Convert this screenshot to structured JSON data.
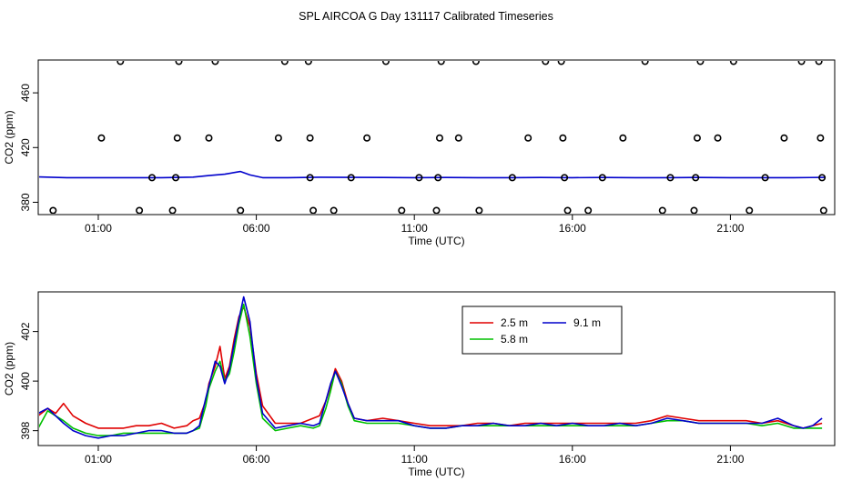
{
  "title": "SPL AIRCOA G  Day 131117  Calibrated Timeseries",
  "chart_data": [
    {
      "type": "scatter",
      "title": "",
      "xlabel": "Time (UTC)",
      "ylabel": "CO2 (ppm)",
      "x_tick_labels": [
        "01:00",
        "06:00",
        "11:00",
        "16:00",
        "21:00"
      ],
      "x_tick_hours": [
        1,
        6,
        11,
        16,
        21
      ],
      "y_ticks": [
        380,
        420,
        460
      ],
      "y_tick_labels": [
        "380",
        "420",
        "460"
      ],
      "xlim": [
        -0.9,
        24.3
      ],
      "ylim": [
        371,
        484
      ],
      "points": [
        [
          -0.43,
          374
        ],
        [
          1.1,
          427
        ],
        [
          1.7,
          483
        ],
        [
          2.3,
          374
        ],
        [
          2.7,
          398
        ],
        [
          3.35,
          374
        ],
        [
          3.45,
          398
        ],
        [
          3.5,
          427
        ],
        [
          3.55,
          483
        ],
        [
          4.5,
          427
        ],
        [
          4.7,
          483
        ],
        [
          5.5,
          374
        ],
        [
          6.7,
          427
        ],
        [
          6.9,
          483
        ],
        [
          7.65,
          483
        ],
        [
          7.7,
          427
        ],
        [
          7.7,
          398
        ],
        [
          7.8,
          374
        ],
        [
          8.45,
          374
        ],
        [
          9.0,
          398
        ],
        [
          9.5,
          427
        ],
        [
          10.1,
          483
        ],
        [
          10.6,
          374
        ],
        [
          11.15,
          398
        ],
        [
          11.7,
          374
        ],
        [
          11.75,
          398
        ],
        [
          11.8,
          427
        ],
        [
          11.85,
          483
        ],
        [
          12.4,
          427
        ],
        [
          12.95,
          483
        ],
        [
          13.05,
          374
        ],
        [
          14.1,
          398
        ],
        [
          14.6,
          427
        ],
        [
          15.15,
          483
        ],
        [
          15.65,
          483
        ],
        [
          15.7,
          427
        ],
        [
          15.75,
          398
        ],
        [
          15.85,
          374
        ],
        [
          16.5,
          374
        ],
        [
          16.95,
          398
        ],
        [
          17.6,
          427
        ],
        [
          18.3,
          483
        ],
        [
          18.85,
          374
        ],
        [
          19.1,
          398
        ],
        [
          19.85,
          374
        ],
        [
          19.9,
          398
        ],
        [
          19.95,
          427
        ],
        [
          20.05,
          483
        ],
        [
          20.6,
          427
        ],
        [
          21.1,
          483
        ],
        [
          21.6,
          374
        ],
        [
          22.1,
          398
        ],
        [
          22.7,
          427
        ],
        [
          23.25,
          483
        ],
        [
          23.8,
          483
        ],
        [
          23.85,
          427
        ],
        [
          23.9,
          398
        ],
        [
          23.95,
          374
        ]
      ],
      "series": [
        {
          "name": "CO2",
          "color": "#0000cc",
          "x": [
            -0.9,
            0,
            1,
            2,
            3,
            4,
            4.5,
            5,
            5.5,
            5.8,
            6.2,
            7,
            8,
            9,
            10,
            11,
            12,
            13,
            14,
            15,
            16,
            17,
            18,
            19,
            20,
            21,
            22,
            23,
            24
          ],
          "y": [
            398.6,
            398,
            398,
            398,
            398,
            398.4,
            399.5,
            400.5,
            402.5,
            400,
            398,
            398,
            398.3,
            398.2,
            398.1,
            398,
            398.1,
            398,
            398,
            398.1,
            398,
            398.1,
            398,
            398,
            398.1,
            398,
            398,
            398,
            398.2
          ]
        }
      ]
    },
    {
      "type": "line",
      "title": "",
      "xlabel": "Time (UTC)",
      "ylabel": "CO2 (ppm)",
      "x_tick_labels": [
        "01:00",
        "06:00",
        "11:00",
        "16:00",
        "21:00"
      ],
      "x_tick_hours": [
        1,
        6,
        11,
        16,
        21
      ],
      "y_ticks": [
        398,
        400,
        402
      ],
      "y_tick_labels": [
        "398",
        "400",
        "402"
      ],
      "xlim": [
        -0.9,
        24.3
      ],
      "ylim": [
        397.4,
        403.6
      ],
      "legend": {
        "position": "top-center",
        "entries": [
          {
            "label": "2.5 m",
            "color": "#e00000"
          },
          {
            "label": "5.8 m",
            "color": "#00c000"
          },
          {
            "label": "9.1 m",
            "color": "#0000cc"
          }
        ]
      },
      "series": [
        {
          "name": "2.5 m",
          "color": "#e00000",
          "x": [
            -0.9,
            -0.6,
            -0.35,
            -0.1,
            0.2,
            0.6,
            1.0,
            1.4,
            1.8,
            2.2,
            2.6,
            3.0,
            3.4,
            3.8,
            4.0,
            4.2,
            4.4,
            4.5,
            4.7,
            4.85,
            5.0,
            5.15,
            5.3,
            5.45,
            5.6,
            5.8,
            6.0,
            6.2,
            6.6,
            7.0,
            7.4,
            7.8,
            8.0,
            8.2,
            8.35,
            8.5,
            8.7,
            8.9,
            9.1,
            9.5,
            10,
            10.5,
            11,
            11.5,
            12,
            12.5,
            13,
            13.5,
            14,
            14.5,
            15,
            15.5,
            16,
            16.5,
            17,
            17.5,
            18,
            18.5,
            19,
            19.5,
            20,
            20.5,
            21,
            21.5,
            22,
            22.5,
            23,
            23.3,
            23.6,
            23.9
          ],
          "y": [
            398.6,
            398.9,
            398.7,
            399.1,
            398.6,
            398.3,
            398.1,
            398.1,
            398.1,
            398.2,
            398.2,
            398.3,
            398.1,
            398.2,
            398.4,
            398.5,
            399.2,
            399.9,
            400.6,
            401.4,
            400.1,
            400.6,
            401.7,
            402.6,
            403.0,
            402.2,
            400.3,
            399.0,
            398.3,
            398.3,
            398.3,
            398.5,
            398.6,
            399.2,
            399.8,
            400.5,
            400.0,
            399.1,
            398.5,
            398.4,
            398.5,
            398.4,
            398.3,
            398.2,
            398.2,
            398.2,
            398.3,
            398.3,
            398.2,
            398.3,
            398.3,
            398.3,
            398.3,
            398.3,
            398.3,
            398.3,
            398.3,
            398.4,
            398.6,
            398.5,
            398.4,
            398.4,
            398.4,
            398.4,
            398.3,
            398.4,
            398.2,
            398.1,
            398.2,
            398.3
          ]
        },
        {
          "name": "5.8 m",
          "color": "#00c000",
          "x": [
            -0.9,
            -0.6,
            -0.35,
            -0.1,
            0.2,
            0.6,
            1.0,
            1.4,
            1.8,
            2.2,
            2.6,
            3.0,
            3.4,
            3.8,
            4.0,
            4.2,
            4.4,
            4.5,
            4.7,
            4.85,
            5.0,
            5.15,
            5.3,
            5.45,
            5.6,
            5.8,
            6.0,
            6.2,
            6.6,
            7.0,
            7.4,
            7.8,
            8.0,
            8.2,
            8.35,
            8.5,
            8.7,
            8.9,
            9.1,
            9.5,
            10,
            10.5,
            11,
            11.5,
            12,
            12.5,
            13,
            13.5,
            14,
            14.5,
            15,
            15.5,
            16,
            16.5,
            17,
            17.5,
            18,
            18.5,
            19,
            19.5,
            20,
            20.5,
            21,
            21.5,
            22,
            22.5,
            23,
            23.3,
            23.6,
            23.9
          ],
          "y": [
            398.1,
            398.8,
            398.6,
            398.4,
            398.1,
            397.9,
            397.8,
            397.8,
            397.9,
            397.9,
            397.9,
            397.9,
            397.9,
            397.9,
            398.0,
            398.1,
            399.0,
            399.7,
            400.4,
            400.8,
            400.0,
            400.3,
            401.2,
            402.3,
            403.1,
            401.8,
            399.9,
            398.5,
            398.0,
            398.1,
            398.2,
            398.1,
            398.2,
            398.9,
            399.6,
            400.4,
            399.9,
            399.0,
            398.4,
            398.3,
            398.3,
            398.3,
            398.2,
            398.1,
            398.1,
            398.2,
            398.2,
            398.2,
            398.2,
            398.2,
            398.2,
            398.2,
            398.2,
            398.2,
            398.2,
            398.2,
            398.2,
            398.3,
            398.4,
            398.4,
            398.3,
            398.3,
            398.3,
            398.3,
            398.2,
            398.3,
            398.1,
            398.1,
            398.1,
            398.1
          ]
        },
        {
          "name": "9.1 m",
          "color": "#0000cc",
          "x": [
            -0.9,
            -0.6,
            -0.35,
            -0.1,
            0.2,
            0.6,
            1.0,
            1.4,
            1.8,
            2.2,
            2.6,
            3.0,
            3.4,
            3.8,
            4.0,
            4.2,
            4.4,
            4.5,
            4.7,
            4.85,
            5.0,
            5.15,
            5.3,
            5.45,
            5.6,
            5.8,
            6.0,
            6.2,
            6.6,
            7.0,
            7.4,
            7.8,
            8.0,
            8.2,
            8.35,
            8.5,
            8.7,
            8.9,
            9.1,
            9.5,
            10,
            10.5,
            11,
            11.5,
            12,
            12.5,
            13,
            13.5,
            14,
            14.5,
            15,
            15.5,
            16,
            16.5,
            17,
            17.5,
            18,
            18.5,
            19,
            19.5,
            20,
            20.5,
            21,
            21.5,
            22,
            22.5,
            23,
            23.3,
            23.6,
            23.9
          ],
          "y": [
            398.7,
            398.9,
            398.6,
            398.3,
            398.0,
            397.8,
            397.7,
            397.8,
            397.8,
            397.9,
            398.0,
            398.0,
            397.9,
            397.9,
            398.0,
            398.2,
            399.3,
            399.8,
            400.8,
            400.6,
            399.9,
            400.5,
            401.5,
            402.5,
            403.4,
            402.4,
            400.1,
            398.7,
            398.1,
            398.2,
            398.3,
            398.2,
            398.3,
            399.2,
            399.9,
            400.4,
            399.8,
            399.1,
            398.5,
            398.4,
            398.4,
            398.4,
            398.2,
            398.1,
            398.1,
            398.2,
            398.2,
            398.3,
            398.2,
            398.2,
            398.3,
            398.2,
            398.3,
            398.2,
            398.2,
            398.3,
            398.2,
            398.3,
            398.5,
            398.4,
            398.3,
            398.3,
            398.3,
            398.3,
            398.3,
            398.5,
            398.2,
            398.1,
            398.2,
            398.5
          ]
        }
      ]
    }
  ]
}
